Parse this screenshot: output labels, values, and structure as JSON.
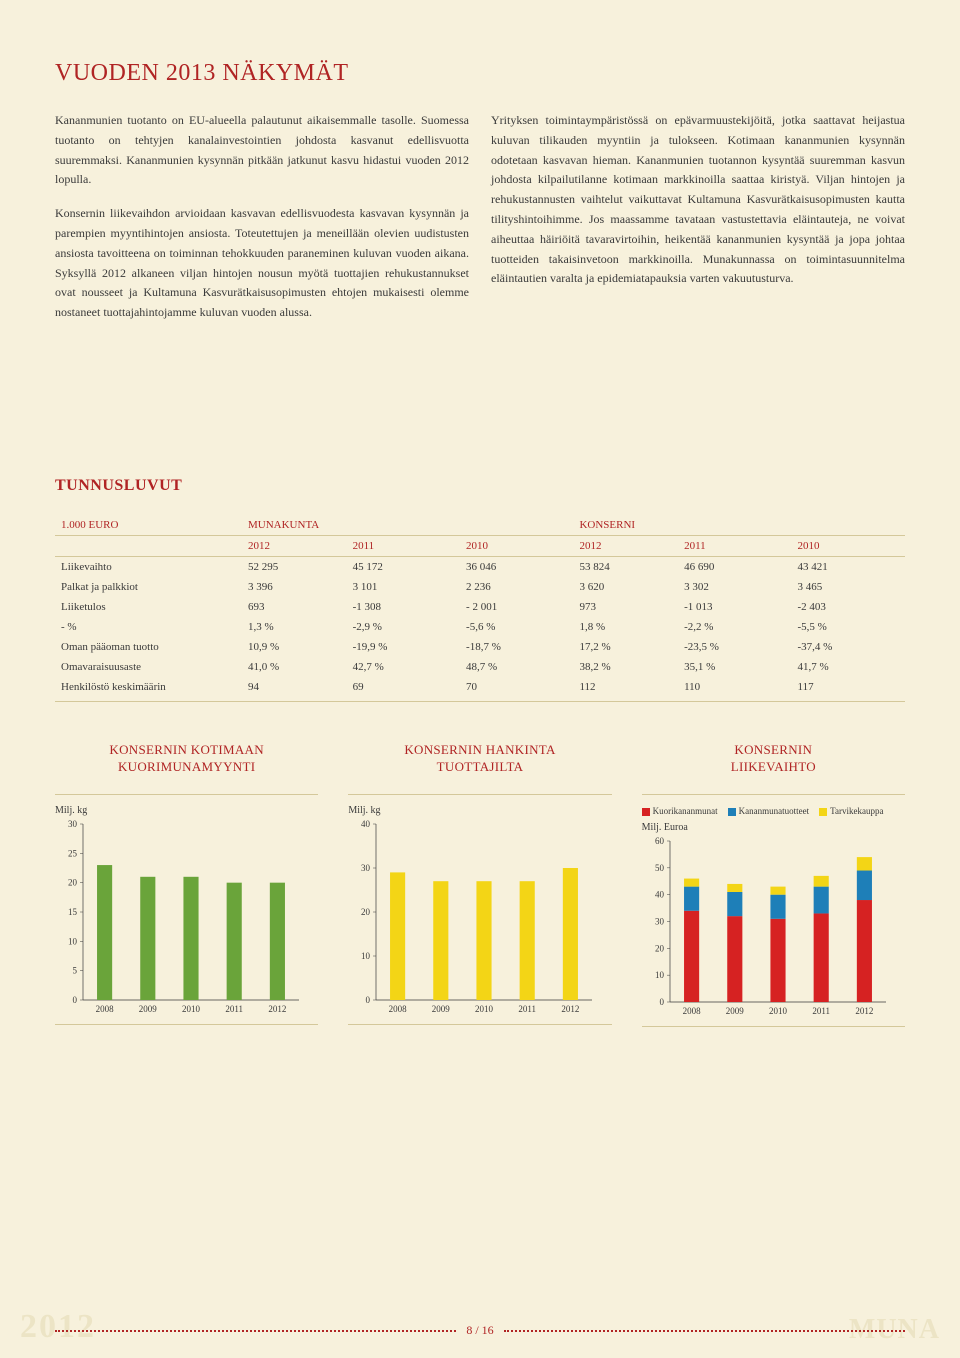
{
  "page": {
    "title": "VUODEN 2013 NÄKYMÄT",
    "paragraphs": {
      "left1": "Kananmunien tuotanto on EU-alueella palautunut aikaisemmalle tasolle. Suomessa tuotanto on tehtyjen kanalainvestointien johdosta kasvanut edellisvuotta suuremmaksi. Kananmunien kysynnän pitkään jatkunut kasvu hidastui vuoden 2012 lopulla.",
      "left2": "Konsernin liikevaihdon arvioidaan kasvavan edellisvuodesta kasvavan kysynnän ja parempien myyntihintojen ansiosta. Toteutettujen ja meneillään olevien uudistusten ansiosta tavoitteena on toiminnan tehokkuuden paraneminen kuluvan vuoden aikana. Syksyllä 2012 alkaneen viljan hintojen nousun myötä tuottajien rehukustannukset ovat nousseet ja Kultamuna Kasvurätkaisusopimusten ehtojen mukaisesti olemme nostaneet tuottajahintojamme kuluvan vuoden alussa.",
      "right1": "Yrityksen toimintaympäristössä on epävarmuustekijöitä, jotka saattavat heijastua kuluvan tilikauden myyntiin ja tulokseen. Kotimaan kananmunien kysynnän odotetaan kasvavan hieman. Kananmunien tuotannon kysyntää suuremman kasvun johdosta kilpailutilanne kotimaan markkinoilla saattaa kiristyä. Viljan hintojen ja rehukustannusten vaihtelut vaikuttavat Kultamuna Kasvurätkaisusopimusten kautta tilityshintoihimme. Jos maassamme tavataan vastustettavia eläintauteja, ne voivat aiheuttaa häiriöitä tavaravirtoihin, heikentää kananmunien kysyntää ja jopa johtaa tuotteiden takaisinvetoon markkinoilla. Munakunnassa on toimintasuunnitelma eläintautien varalta ja epidemiatapauksia varten vakuutusturva."
    },
    "tunnusluvut_title": "TUNNUSLUVUT",
    "page_number": "8 / 16",
    "year_bg": "2012",
    "brand_bg": "MUNA"
  },
  "table": {
    "unit_label": "1.000 EURO",
    "group1": "MUNAKUNTA",
    "group2": "KONSERNI",
    "years": [
      "2012",
      "2011",
      "2010",
      "2012",
      "2011",
      "2010"
    ],
    "rows": [
      {
        "label": "Liikevaihto",
        "vals": [
          "52 295",
          "45 172",
          "36 046",
          "53 824",
          "46 690",
          "43 421"
        ]
      },
      {
        "label": "Palkat ja palkkiot",
        "vals": [
          "3 396",
          "3 101",
          "2 236",
          "3 620",
          "3 302",
          "3 465"
        ]
      },
      {
        "label": "Liiketulos",
        "vals": [
          "693",
          "-1 308",
          "- 2 001",
          "973",
          "-1 013",
          "-2 403"
        ]
      },
      {
        "label": "- %",
        "vals": [
          "1,3 %",
          "-2,9 %",
          "-5,6 %",
          "1,8 %",
          "-2,2 %",
          "-5,5 %"
        ]
      },
      {
        "label": "Oman pääoman tuotto",
        "vals": [
          "10,9 %",
          "-19,9 %",
          "-18,7 %",
          "17,2 %",
          "-23,5 %",
          "-37,4 %"
        ]
      },
      {
        "label": "Omavaraisuusaste",
        "vals": [
          "41,0 %",
          "42,7 %",
          "48,7 %",
          "38,2 %",
          "35,1 %",
          "41,7 %"
        ]
      },
      {
        "label": "Henkilöstö keskimäärin",
        "vals": [
          "94",
          "69",
          "70",
          "112",
          "110",
          "117"
        ]
      }
    ]
  },
  "charts": {
    "chart1": {
      "title_line1": "KONSERNIN KOTIMAAN",
      "title_line2": "KUORIMUNAMYYNTI",
      "y_label": "Milj. kg",
      "y_max": 30,
      "y_step": 5,
      "categories": [
        "2008",
        "2009",
        "2010",
        "2011",
        "2012"
      ],
      "values": [
        23,
        21,
        21,
        20,
        20
      ],
      "bar_color": "#6aa43a",
      "bg": "#f7f1dc",
      "axis_color": "#d4c89a",
      "label_fontsize": 9
    },
    "chart2": {
      "title_line1": "KONSERNIN HANKINTA",
      "title_line2": "TUOTTAJILTA",
      "y_label": "Milj. kg",
      "y_max": 40,
      "y_step": 10,
      "categories": [
        "2008",
        "2009",
        "2010",
        "2011",
        "2012"
      ],
      "values": [
        29,
        27,
        27,
        27,
        30
      ],
      "bar_color": "#f3d516",
      "bg": "#f7f1dc",
      "axis_color": "#d4c89a",
      "label_fontsize": 9
    },
    "chart3": {
      "title_line1": "KONSERNIN",
      "title_line2": "LIIKEVAIHTO",
      "y_label": "Milj. Euroa",
      "y_max": 60,
      "y_step": 10,
      "categories": [
        "2008",
        "2009",
        "2010",
        "2011",
        "2012"
      ],
      "legend": [
        {
          "label": "Kuorikananmunat",
          "color": "#d62222"
        },
        {
          "label": "Kananmunatuotteet",
          "color": "#1e7fb8"
        },
        {
          "label": "Tarvikekauppa",
          "color": "#f3d516"
        }
      ],
      "stacks": [
        {
          "red": 34,
          "blue": 9,
          "yellow": 3
        },
        {
          "red": 32,
          "blue": 9,
          "yellow": 3
        },
        {
          "red": 31,
          "blue": 9,
          "yellow": 3
        },
        {
          "red": 33,
          "blue": 10,
          "yellow": 4
        },
        {
          "red": 38,
          "blue": 11,
          "yellow": 5
        }
      ],
      "bg": "#f7f1dc",
      "axis_color": "#d4c89a",
      "label_fontsize": 9
    }
  }
}
